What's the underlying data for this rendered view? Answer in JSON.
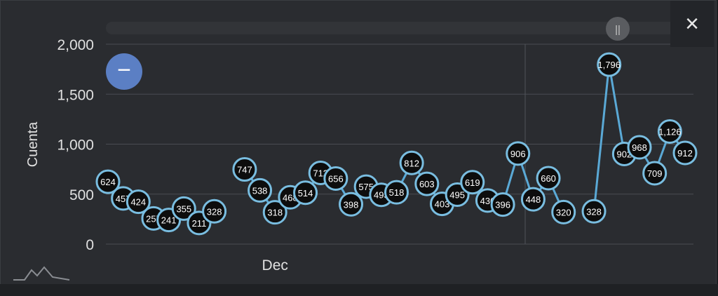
{
  "ui": {
    "close_icon": "×",
    "zoom_out_icon": "−",
    "logo_icon": "mountain-logo-icon",
    "scroll_handle_icon": "||"
  },
  "colors": {
    "background": "#2a2c30",
    "line": "#5aa9d6",
    "marker_fill": "#0d0d0d",
    "marker_stroke": "#79bde0",
    "grid": "#4a4d52",
    "text": "#e0e0e0",
    "accent": "#5b7fc4"
  },
  "chart_data": {
    "type": "line",
    "xlabel": "",
    "ylabel": "Cuenta",
    "ylim": [
      0,
      2000
    ],
    "yticks": [
      "0",
      "500",
      "1,000",
      "1,500",
      "2,000"
    ],
    "ytick_values": [
      0,
      500,
      1000,
      1500,
      2000
    ],
    "x_tick_labels": [
      {
        "label": "Dec",
        "index": 11
      }
    ],
    "grid": true,
    "series": [
      {
        "values": [
          624,
          457,
          424,
          257,
          241,
          355,
          211,
          328,
          null,
          747,
          538,
          318,
          468,
          514,
          712,
          656,
          398,
          575,
          493,
          518,
          812,
          603,
          403,
          495,
          619,
          436,
          396,
          906,
          448,
          660,
          320,
          null,
          328,
          1796,
          902,
          968,
          709,
          1126,
          912
        ],
        "labels": [
          "624",
          "457",
          "424",
          "257",
          "241",
          "355",
          "211",
          "328",
          "",
          "747",
          "538",
          "318",
          "468",
          "514",
          "712",
          "656",
          "398",
          "575",
          "493",
          "518",
          "812",
          "603",
          "403",
          "495",
          "619",
          "436",
          "396",
          "906",
          "448",
          "660",
          "320",
          "",
          "328",
          "1,796",
          "902",
          "968",
          "709",
          "1,126",
          "912"
        ]
      }
    ]
  }
}
